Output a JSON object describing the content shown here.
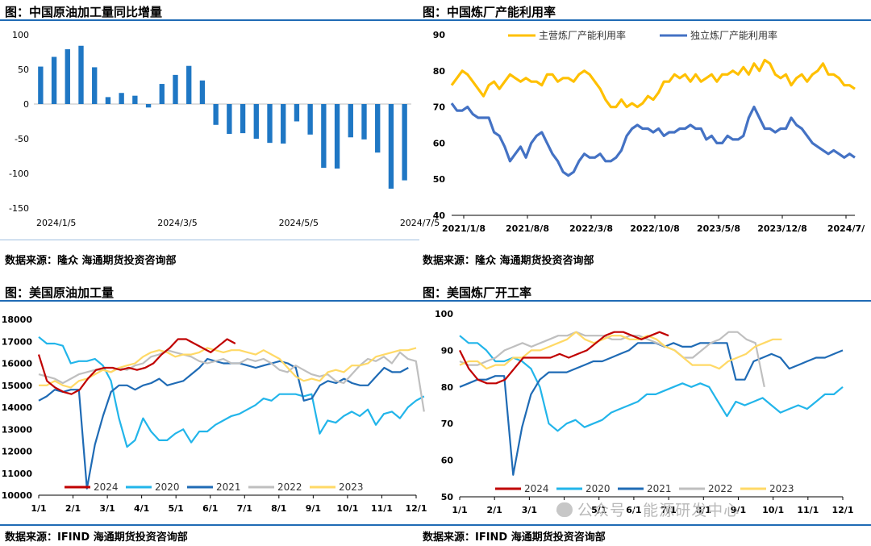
{
  "panels": {
    "p1": {
      "title": "图：中国原油加工量同比增量",
      "source": "数据来源：隆众   海通期货投资咨询部"
    },
    "p2": {
      "title": "图：中国炼厂产能利用率",
      "source": "数据来源：隆众   海通期货投资咨询部"
    },
    "p3": {
      "title": "图：美国原油加工量",
      "source": "数据来源：IFIND   海通期货投资咨询部"
    },
    "p4": {
      "title": "图：美国炼厂开工率",
      "source": "数据来源：IFIND   海通期货投资咨询部"
    }
  },
  "watermark": {
    "text": "公众号 · 能源研发中心"
  },
  "colors": {
    "accent": "#1f6bb5",
    "bar": "#1f77c4",
    "yellow": "#ffc000",
    "blue": "#4472c4",
    "red": "#c00000",
    "lightblue": "#22b5ea",
    "darkblue": "#1f6bb5",
    "gray": "#bfbfbf",
    "paleyellow": "#ffd966"
  },
  "chart_data": [
    {
      "type": "bar",
      "title": "图：中国原油加工量同比增量",
      "xtick_labels": [
        "2024/1/5",
        "2024/3/5",
        "2024/5/5",
        "2024/7/5"
      ],
      "ylim": [
        -150,
        100
      ],
      "yticks": [
        100,
        50,
        0,
        -50,
        -100,
        -150
      ],
      "values": [
        54,
        68,
        79,
        84,
        53,
        10,
        16,
        12,
        -5,
        29,
        42,
        55,
        34,
        -30,
        -43,
        -42,
        -50,
        -56,
        -57,
        -25,
        -44,
        -92,
        -93,
        -48,
        -51,
        -70,
        -122,
        -110
      ],
      "grid": false
    },
    {
      "type": "line",
      "title": "图：中国炼厂产能利用率",
      "xtick_labels": [
        "2021/1/8",
        "2021/8/8",
        "2022/3/8",
        "2022/10/8",
        "2023/5/8",
        "2023/12/8",
        "2024/7/"
      ],
      "ylim": [
        40,
        90
      ],
      "yticks": [
        90,
        80,
        70,
        60,
        50,
        40
      ],
      "legend_position": "top",
      "series": [
        {
          "name": "主营炼厂产能利用率",
          "color": "#ffc000",
          "values": [
            76,
            78,
            80,
            79,
            77,
            75,
            73,
            76,
            77,
            75,
            77,
            79,
            78,
            77,
            78,
            77,
            77,
            76,
            79,
            79,
            77,
            78,
            78,
            77,
            79,
            80,
            79,
            77,
            75,
            72,
            70,
            70,
            72,
            70,
            71,
            70,
            71,
            73,
            72,
            74,
            77,
            77,
            79,
            78,
            79,
            77,
            79,
            77,
            78,
            79,
            77,
            79,
            79,
            80,
            79,
            81,
            79,
            82,
            80,
            83,
            82,
            79,
            78,
            79,
            76,
            78,
            79,
            77,
            79,
            80,
            82,
            79,
            79,
            78,
            76,
            76,
            75
          ]
        },
        {
          "name": "独立炼厂产能利用率",
          "color": "#4472c4",
          "values": [
            71,
            69,
            69,
            70,
            68,
            67,
            67,
            67,
            63,
            62,
            59,
            55,
            57,
            59,
            56,
            60,
            62,
            63,
            60,
            57,
            55,
            52,
            51,
            52,
            55,
            57,
            56,
            56,
            57,
            55,
            55,
            56,
            58,
            62,
            64,
            65,
            64,
            64,
            63,
            64,
            62,
            63,
            63,
            64,
            64,
            65,
            64,
            64,
            61,
            62,
            60,
            60,
            62,
            61,
            61,
            62,
            67,
            70,
            67,
            64,
            64,
            63,
            64,
            64,
            67,
            65,
            64,
            62,
            60,
            59,
            58,
            57,
            58,
            57,
            56,
            57,
            56
          ]
        }
      ]
    },
    {
      "type": "line",
      "title": "图：美国原油加工量",
      "xtick_labels": [
        "1/1",
        "2/1",
        "3/1",
        "4/1",
        "5/1",
        "6/1",
        "7/1",
        "8/1",
        "9/1",
        "10/1",
        "11/1",
        "12/1"
      ],
      "ylim": [
        10000,
        18000
      ],
      "yticks": [
        18000,
        17000,
        16000,
        15000,
        14000,
        13000,
        12000,
        11000,
        10000
      ],
      "legend_position": "bottom",
      "series": [
        {
          "name": "2024",
          "color": "#c00000",
          "values": [
            16400,
            15200,
            14900,
            14700,
            14600,
            14800,
            15300,
            15700,
            15800,
            15800,
            15700,
            15800,
            15700,
            15800,
            16000,
            16400,
            16700,
            17100,
            17100,
            16900,
            16700,
            16500,
            16800,
            17100,
            16900
          ]
        },
        {
          "name": "2020",
          "color": "#22b5ea",
          "values": [
            17200,
            16900,
            16900,
            16800,
            16000,
            16100,
            16100,
            16200,
            15900,
            15200,
            13500,
            12200,
            12500,
            13500,
            12900,
            12500,
            12500,
            12800,
            13000,
            12400,
            12900,
            12900,
            13200,
            13400,
            13600,
            13700,
            13900,
            14100,
            14400,
            14300,
            14600,
            14600,
            14600,
            14500,
            14600,
            12800,
            13400,
            13300,
            13600,
            13800,
            13600,
            13900,
            13200,
            13700,
            13800,
            13500,
            14000,
            14300,
            14500
          ]
        },
        {
          "name": "2021",
          "color": "#1f6bb5",
          "values": [
            14300,
            14500,
            14800,
            14700,
            14800,
            14800,
            10300,
            12300,
            13600,
            14700,
            15000,
            15000,
            14800,
            15000,
            15100,
            15300,
            15000,
            15100,
            15200,
            15500,
            15800,
            16200,
            16100,
            16000,
            16000,
            16000,
            15900,
            15800,
            15900,
            16000,
            16100,
            16000,
            15800,
            14300,
            14400,
            15000,
            15200,
            15100,
            15300,
            15100,
            15000,
            15000,
            15400,
            15800,
            15600,
            15600,
            15800
          ]
        },
        {
          "name": "2022",
          "color": "#bfbfbf",
          "values": [
            15500,
            15400,
            15300,
            15100,
            15300,
            15500,
            15600,
            15700,
            15700,
            15600,
            15800,
            15700,
            15900,
            16000,
            16300,
            16400,
            16600,
            16500,
            16400,
            16300,
            16100,
            16000,
            16100,
            16200,
            16000,
            16000,
            16200,
            16100,
            16200,
            16000,
            15700,
            15600,
            15900,
            15700,
            15500,
            15400,
            15500,
            15200,
            15100,
            15500,
            15900,
            16200,
            16100,
            16300,
            16000,
            16500,
            16200,
            16100,
            13800
          ]
        },
        {
          "name": "2023",
          "color": "#ffd966",
          "values": [
            15000,
            15000,
            15200,
            15000,
            14900,
            15200,
            15300,
            15500,
            15700,
            15600,
            15800,
            15900,
            16000,
            16300,
            16500,
            16600,
            16500,
            16300,
            16400,
            16400,
            16500,
            16700,
            16600,
            16500,
            16600,
            16600,
            16500,
            16400,
            16600,
            16400,
            16200,
            15800,
            15400,
            15200,
            15300,
            15200,
            15600,
            15700,
            15600,
            15900,
            15900,
            16000,
            16300,
            16400,
            16500,
            16600,
            16600,
            16700
          ]
        }
      ]
    },
    {
      "type": "line",
      "title": "图：美国炼厂开工率",
      "xtick_labels": [
        "1/1",
        "2/1",
        "3/1",
        "4/1",
        "5/1",
        "6/1",
        "7/1",
        "8/1",
        "9/1",
        "10/1",
        "11/1",
        "12/1"
      ],
      "ylim": [
        50,
        100
      ],
      "yticks": [
        100,
        90,
        80,
        70,
        60,
        50
      ],
      "legend_position": "bottom",
      "series": [
        {
          "name": "2024",
          "color": "#c00000",
          "values": [
            90,
            85,
            82,
            81,
            81,
            82,
            85,
            88,
            88,
            88,
            88,
            89,
            88,
            89,
            90,
            92,
            94,
            95,
            95,
            94,
            93,
            94,
            95,
            94
          ]
        },
        {
          "name": "2020",
          "color": "#22b5ea",
          "values": [
            94,
            92,
            92,
            90,
            87,
            87,
            88,
            87,
            85,
            80,
            70,
            68,
            70,
            71,
            69,
            70,
            71,
            73,
            74,
            75,
            76,
            78,
            78,
            79,
            80,
            81,
            80,
            81,
            80,
            76,
            72,
            76,
            75,
            76,
            77,
            75,
            73,
            74,
            75,
            74,
            76,
            78,
            78,
            80
          ]
        },
        {
          "name": "2021",
          "color": "#1f6bb5",
          "values": [
            80,
            81,
            82,
            82,
            83,
            83,
            56,
            69,
            78,
            82,
            84,
            84,
            84,
            85,
            86,
            87,
            87,
            88,
            89,
            90,
            92,
            92,
            92,
            91,
            92,
            91,
            91,
            92,
            92,
            92,
            92,
            82,
            82,
            87,
            88,
            89,
            88,
            85,
            86,
            87,
            88,
            88,
            89,
            90
          ]
        },
        {
          "name": "2022",
          "color": "#bfbfbf",
          "values": [
            87,
            86,
            86,
            87,
            88,
            90,
            91,
            92,
            91,
            92,
            93,
            94,
            94,
            95,
            94,
            94,
            94,
            93,
            93,
            94,
            94,
            93,
            92,
            91,
            90,
            88,
            88,
            90,
            92,
            93,
            95,
            95,
            93,
            92,
            80
          ]
        },
        {
          "name": "2023",
          "color": "#ffd966",
          "values": [
            86,
            87,
            87,
            85,
            86,
            86,
            88,
            88,
            90,
            90,
            91,
            92,
            93,
            95,
            93,
            92,
            93,
            94,
            94,
            93,
            93,
            94,
            93,
            91,
            90,
            88,
            86,
            86,
            86,
            85,
            87,
            88,
            89,
            91,
            92,
            93,
            93
          ]
        }
      ]
    }
  ]
}
